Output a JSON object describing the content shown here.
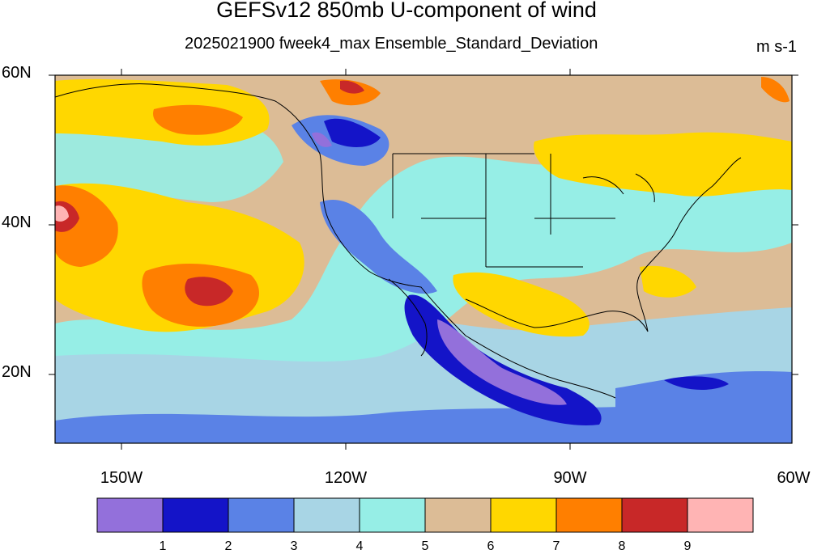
{
  "header": {
    "title": "GEFSv12 850mb U-component of wind",
    "subtitle": "2025021900 fweek4_max Ensemble_Standard_Deviation",
    "units": "m s-1"
  },
  "axes": {
    "lat_labels": [
      "60N",
      "40N",
      "20N"
    ],
    "lon_labels": [
      "150W",
      "120W",
      "90W",
      "60W"
    ]
  },
  "colorbar": {
    "colors": [
      "#9370db",
      "#1414c8",
      "#5a82e6",
      "#a8d5e5",
      "#96eee6",
      "#dcbc96",
      "#ffd700",
      "#ff7f00",
      "#c82828",
      "#ffb4b4"
    ],
    "labels": [
      "1",
      "2",
      "3",
      "4",
      "5",
      "6",
      "7",
      "8",
      "9"
    ]
  },
  "map": {
    "variable": "850mb U-component wind ensemble standard deviation",
    "region": "North America / Eastern Pacific",
    "lon_range": [
      "160W",
      "60W"
    ],
    "lat_range": [
      "10N",
      "60N"
    ]
  }
}
